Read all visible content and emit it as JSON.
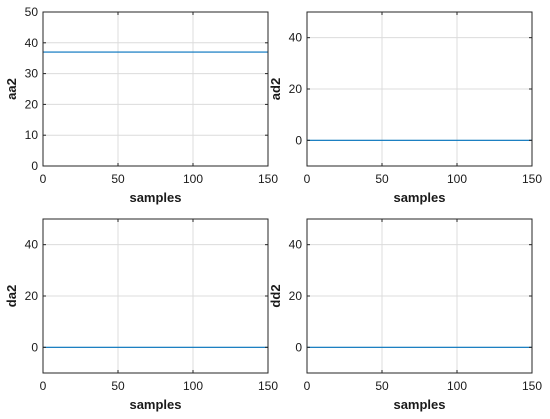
{
  "chart_data": [
    {
      "type": "line",
      "xlabel": "samples",
      "ylabel": "aa2",
      "xlim": [
        0,
        150
      ],
      "ylim": [
        0,
        50
      ],
      "xticks": [
        0,
        50,
        100,
        150
      ],
      "yticks": [
        0,
        10,
        20,
        30,
        40,
        50
      ],
      "grid": true,
      "series": [
        {
          "x": [
            0,
            150
          ],
          "y": [
            37,
            37
          ],
          "color": "#0072BD"
        }
      ]
    },
    {
      "type": "line",
      "xlabel": "samples",
      "ylabel": "ad2",
      "xlim": [
        0,
        150
      ],
      "ylim": [
        -10,
        50
      ],
      "xticks": [
        0,
        50,
        100,
        150
      ],
      "yticks": [
        0,
        20,
        40
      ],
      "grid": true,
      "series": [
        {
          "x": [
            0,
            150
          ],
          "y": [
            0,
            0
          ],
          "color": "#0072BD"
        }
      ]
    },
    {
      "type": "line",
      "xlabel": "samples",
      "ylabel": "da2",
      "xlim": [
        0,
        150
      ],
      "ylim": [
        -10,
        50
      ],
      "xticks": [
        0,
        50,
        100,
        150
      ],
      "yticks": [
        0,
        20,
        40
      ],
      "grid": true,
      "series": [
        {
          "x": [
            0,
            150
          ],
          "y": [
            0,
            0
          ],
          "color": "#0072BD"
        }
      ]
    },
    {
      "type": "line",
      "xlabel": "samples",
      "ylabel": "dd2",
      "xlim": [
        0,
        150
      ],
      "ylim": [
        -10,
        50
      ],
      "xticks": [
        0,
        50,
        100,
        150
      ],
      "yticks": [
        0,
        20,
        40
      ],
      "grid": true,
      "series": [
        {
          "x": [
            0,
            150
          ],
          "y": [
            0,
            0
          ],
          "color": "#0072BD"
        }
      ]
    }
  ]
}
